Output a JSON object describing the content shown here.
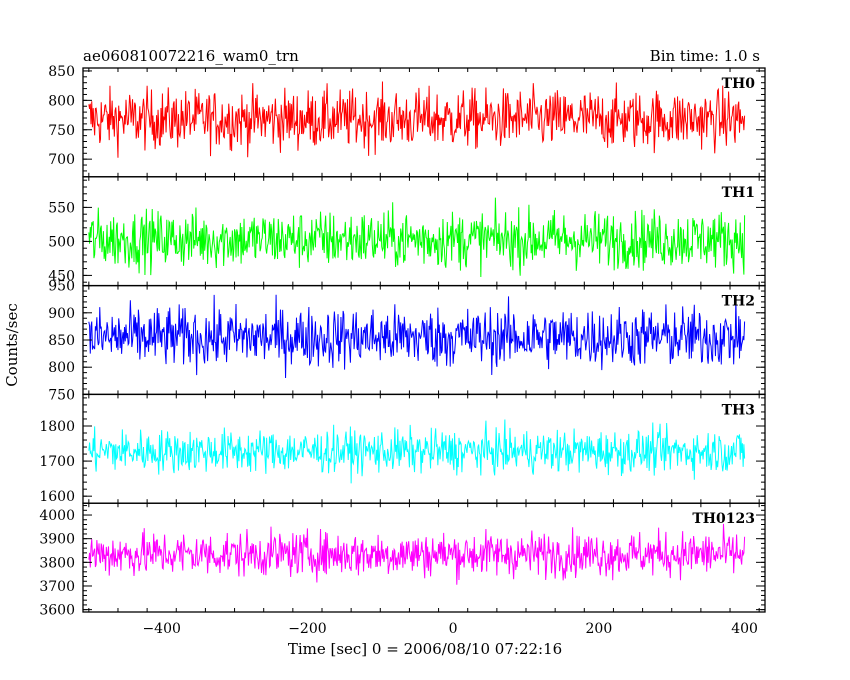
{
  "header": {
    "title": "ae060810072216_wam0_trn",
    "bin_time": "Bin time: 1.0 s"
  },
  "chart_data": {
    "type": "line",
    "xlabel": "Time [sec] 0 = 2006/08/10 07:22:16",
    "ylabel": "Counts/sec",
    "xlim": [
      -508,
      428
    ],
    "x_step": 1,
    "x_data_range": [
      -500,
      400
    ],
    "x_ticks": [
      -400,
      -200,
      0,
      200,
      400
    ],
    "x_tick_labels": [
      "−400",
      "−200",
      "0",
      "200",
      "400"
    ],
    "panels": [
      {
        "name": "TH0",
        "color": "#ff0000",
        "ylim": [
          670,
          855
        ],
        "yticks": [
          700,
          750,
          800,
          850
        ],
        "mean": 768,
        "amplitude": 45
      },
      {
        "name": "TH1",
        "color": "#00ff00",
        "ylim": [
          435,
          595
        ],
        "yticks": [
          450,
          500,
          550
        ],
        "mean": 503,
        "amplitude": 38
      },
      {
        "name": "TH2",
        "color": "#0000ff",
        "ylim": [
          750,
          950
        ],
        "yticks": [
          750,
          800,
          850,
          900,
          950
        ],
        "mean": 855,
        "amplitude": 50
      },
      {
        "name": "TH3",
        "color": "#00ffff",
        "ylim": [
          1580,
          1890
        ],
        "yticks": [
          1600,
          1700,
          1800
        ],
        "mean": 1728,
        "amplitude": 55
      },
      {
        "name": "TH0123",
        "color": "#ff00ff",
        "ylim": [
          3590,
          4050
        ],
        "yticks": [
          3600,
          3700,
          3800,
          3900,
          4000
        ],
        "mean": 3835,
        "amplitude": 85
      }
    ]
  }
}
